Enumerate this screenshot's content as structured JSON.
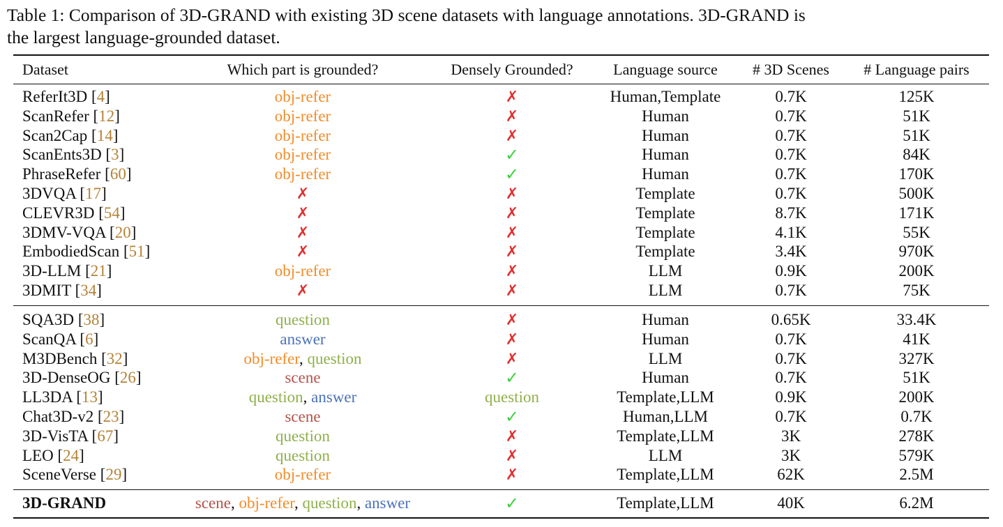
{
  "caption": {
    "line1": "Table 1: Comparison of 3D-GRAND with existing 3D scene datasets with language annotations. 3D-GRAND is",
    "line2": "the largest language-grounded dataset."
  },
  "colors": {
    "obj-refer": "#f28c28",
    "question": "#8fb04a",
    "answer": "#4a72b8",
    "scene": "#b5524a",
    "cross": "#e03030",
    "check": "#3ed13e",
    "ref": "#b58236"
  },
  "headers": [
    "Dataset",
    "Which part is grounded?",
    "Densely Grounded?",
    "Language source",
    "# 3D Scenes",
    "# Language pairs"
  ],
  "group1": [
    {
      "name": "ReferIt3D",
      "ref": "4",
      "grounded": [
        "obj-refer"
      ],
      "dense": "cross",
      "source": "Human,Template",
      "scenes": "0.7K",
      "pairs": "125K"
    },
    {
      "name": "ScanRefer",
      "ref": "12",
      "grounded": [
        "obj-refer"
      ],
      "dense": "cross",
      "source": "Human",
      "scenes": "0.7K",
      "pairs": "51K"
    },
    {
      "name": "Scan2Cap",
      "ref": "14",
      "grounded": [
        "obj-refer"
      ],
      "dense": "cross",
      "source": "Human",
      "scenes": "0.7K",
      "pairs": "51K"
    },
    {
      "name": "ScanEnts3D",
      "ref": "3",
      "grounded": [
        "obj-refer"
      ],
      "dense": "check",
      "source": "Human",
      "scenes": "0.7K",
      "pairs": "84K"
    },
    {
      "name": "PhraseRefer",
      "ref": "60",
      "grounded": [
        "obj-refer"
      ],
      "dense": "check",
      "source": "Human",
      "scenes": "0.7K",
      "pairs": "170K"
    },
    {
      "name": "3DVQA",
      "ref": "17",
      "grounded": [
        "cross"
      ],
      "dense": "cross",
      "source": "Template",
      "scenes": "0.7K",
      "pairs": "500K"
    },
    {
      "name": "CLEVR3D",
      "ref": "54",
      "grounded": [
        "cross"
      ],
      "dense": "cross",
      "source": "Template",
      "scenes": "8.7K",
      "pairs": "171K"
    },
    {
      "name": "3DMV-VQA",
      "ref": "20",
      "grounded": [
        "cross"
      ],
      "dense": "cross",
      "source": "Template",
      "scenes": "4.1K",
      "pairs": "55K"
    },
    {
      "name": "EmbodiedScan",
      "ref": "51",
      "grounded": [
        "cross"
      ],
      "dense": "cross",
      "source": "Template",
      "scenes": "3.4K",
      "pairs": "970K"
    },
    {
      "name": "3D-LLM",
      "ref": "21",
      "grounded": [
        "obj-refer"
      ],
      "dense": "cross",
      "source": "LLM",
      "scenes": "0.9K",
      "pairs": "200K"
    },
    {
      "name": "3DMIT",
      "ref": "34",
      "grounded": [
        "cross"
      ],
      "dense": "cross",
      "source": "LLM",
      "scenes": "0.7K",
      "pairs": "75K"
    }
  ],
  "group2": [
    {
      "name": "SQA3D",
      "ref": "38",
      "grounded": [
        "question"
      ],
      "dense": "cross",
      "source": "Human",
      "scenes": "0.65K",
      "pairs": "33.4K"
    },
    {
      "name": "ScanQA",
      "ref": "6",
      "grounded": [
        "answer"
      ],
      "dense": "cross",
      "source": "Human",
      "scenes": "0.7K",
      "pairs": "41K"
    },
    {
      "name": "M3DBench",
      "ref": "32",
      "grounded": [
        "obj-refer",
        "question"
      ],
      "dense": "cross",
      "source": "LLM",
      "scenes": "0.7K",
      "pairs": "327K"
    },
    {
      "name": "3D-DenseOG",
      "ref": "26",
      "grounded": [
        "scene"
      ],
      "dense": "check",
      "source": "Human",
      "scenes": "0.7K",
      "pairs": "51K"
    },
    {
      "name": "LL3DA",
      "ref": "13",
      "grounded": [
        "question",
        "answer"
      ],
      "dense": "question",
      "source": "Template,LLM",
      "scenes": "0.9K",
      "pairs": "200K"
    },
    {
      "name": "Chat3D-v2",
      "ref": "23",
      "grounded": [
        "scene"
      ],
      "dense": "check",
      "source": "Human,LLM",
      "scenes": "0.7K",
      "pairs": "0.7K"
    },
    {
      "name": "3D-VisTA",
      "ref": "67",
      "grounded": [
        "question"
      ],
      "dense": "cross",
      "source": "Template,LLM",
      "scenes": "3K",
      "pairs": "278K"
    },
    {
      "name": "LEO",
      "ref": "24",
      "grounded": [
        "question"
      ],
      "dense": "cross",
      "source": "LLM",
      "scenes": "3K",
      "pairs": "579K"
    },
    {
      "name": "SceneVerse",
      "ref": "29",
      "grounded": [
        "obj-refer"
      ],
      "dense": "cross",
      "source": "Template,LLM",
      "scenes": "62K",
      "pairs": "2.5M"
    }
  ],
  "final": {
    "name": "3D-GRAND",
    "grounded": [
      "scene",
      "obj-refer",
      "question",
      "answer"
    ],
    "dense": "check",
    "source": "Template,LLM",
    "scenes": "40K",
    "pairs": "6.2M"
  }
}
